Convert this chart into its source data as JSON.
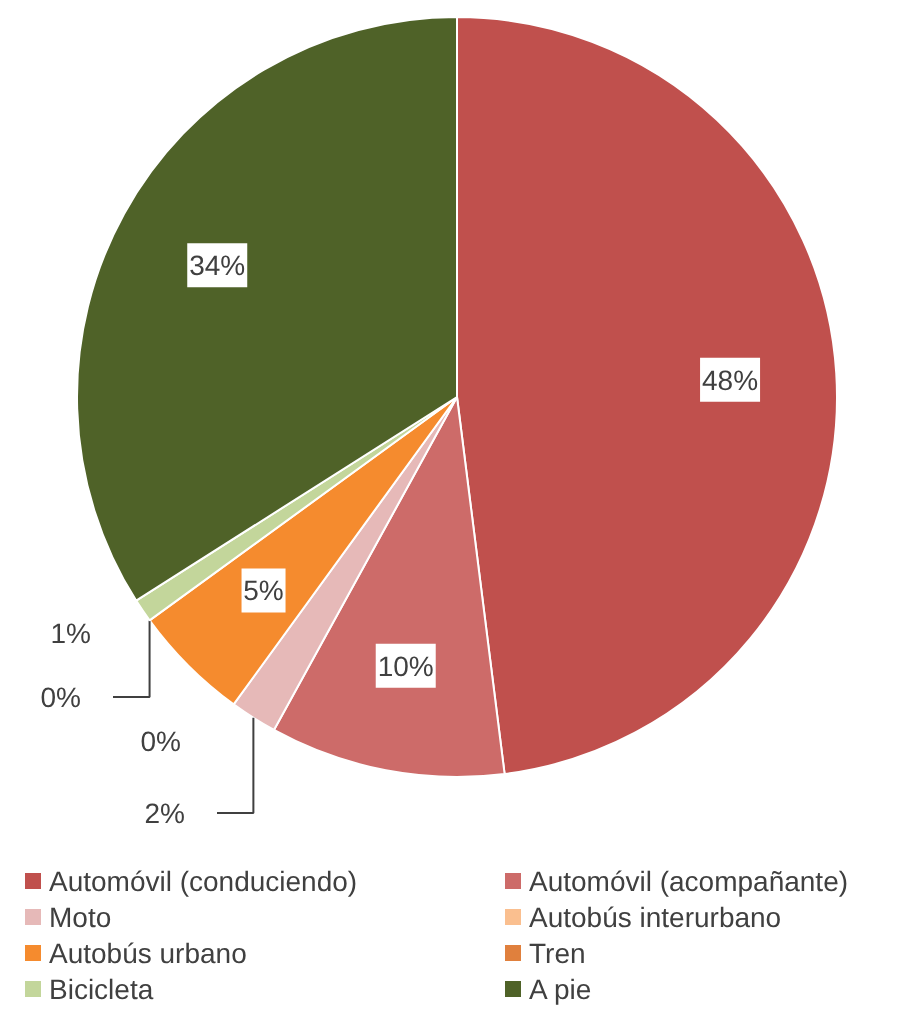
{
  "chart_data": {
    "type": "pie",
    "categories": [
      "Automóvil (conduciendo)",
      "Automóvil (acompañante)",
      "Moto",
      "Autobús interurbano",
      "Autobús urbano",
      "Tren",
      "Bicicleta",
      "A pie"
    ],
    "values": [
      48,
      10,
      2,
      0,
      5,
      0,
      1,
      34
    ],
    "colors": [
      "#c0504d",
      "#cd6b69",
      "#e6b9b8",
      "#fabf8f",
      "#f58b2e",
      "#e0803d",
      "#c3d69b",
      "#4f6228"
    ],
    "value_labels": [
      "48%",
      "10%",
      "2%",
      "0%",
      "5%",
      "0%",
      "1%",
      "34%"
    ],
    "legend": "bottom"
  }
}
